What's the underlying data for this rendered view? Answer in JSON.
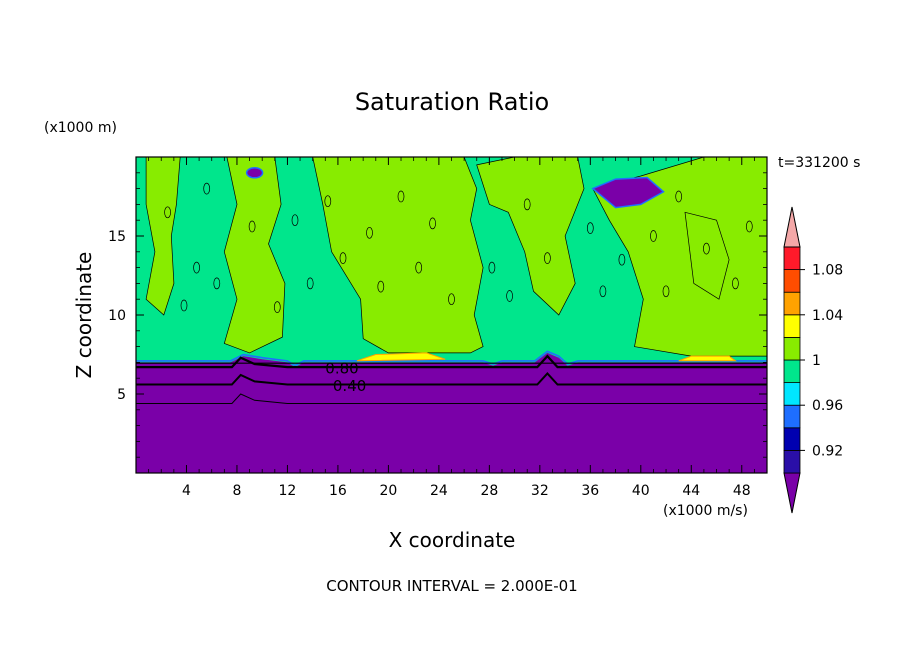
{
  "chart_data": {
    "type": "filled-contour",
    "title": "Saturation Ratio",
    "xlabel": "X coordinate",
    "ylabel": "Z coordinate",
    "x_unit": "(x1000 m/s)",
    "y_unit": "(x1000 m)",
    "time_label": "t=331200 s",
    "footer": "CONTOUR INTERVAL = 2.000E-01",
    "xlim": [
      0,
      50
    ],
    "ylim": [
      0,
      20
    ],
    "x_ticks": [
      4,
      8,
      12,
      16,
      20,
      24,
      28,
      32,
      36,
      40,
      44,
      48
    ],
    "y_ticks": [
      5,
      10,
      15
    ],
    "contour_labels": [
      {
        "text": "0.80",
        "x": 15.0,
        "y": 6.6
      },
      {
        "text": "0.40",
        "x": 15.6,
        "y": 5.5
      }
    ],
    "colorbar": {
      "levels": [
        0.92,
        0.94,
        0.96,
        0.98,
        1.0,
        1.02,
        1.04,
        1.06,
        1.08,
        1.1
      ],
      "tick_labels": [
        "0.92",
        "0.96",
        "1",
        "1.04",
        "1.08"
      ],
      "tick_values": [
        0.92,
        0.96,
        1.0,
        1.04,
        1.08
      ],
      "colors": [
        "#7a00a8",
        "#2a0fa8",
        "#0000b0",
        "#1e6eff",
        "#00e6ff",
        "#00e68c",
        "#88ec00",
        "#ffff00",
        "#ffa200",
        "#ff4d00",
        "#ff1a2a",
        "#f4a8a8"
      ]
    },
    "regions": {
      "dry_layer_color": "#7a00a8",
      "moist_main_color": "#00e68c",
      "moist_secondary_color": "#88ec00",
      "dry_layer_top_z": 7.0
    }
  }
}
